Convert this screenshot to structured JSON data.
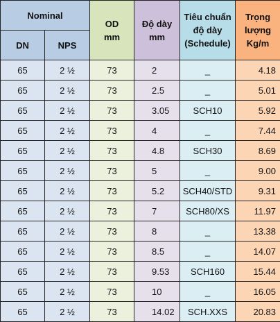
{
  "header": {
    "nominal": "Nominal",
    "dn": "DN",
    "nps": "NPS",
    "od_line1": "OD",
    "od_line2": "mm",
    "thick_line1": "Độ dày",
    "thick_line2": "mm",
    "sched_line1": "Tiêu chuẩn",
    "sched_line2": "độ dày",
    "sched_line3": "(Schedule)",
    "weight_line1": "Trọng",
    "weight_line2": "lượng",
    "weight_line3": "Kg/m"
  },
  "rows": [
    {
      "dn": "65",
      "nps": "2 ½",
      "od": "73",
      "thickness": "2",
      "schedule": "_",
      "weight": "4.18"
    },
    {
      "dn": "65",
      "nps": "2 ½",
      "od": "73",
      "thickness": "2.5",
      "schedule": "_",
      "weight": "5.01"
    },
    {
      "dn": "65",
      "nps": "2 ½",
      "od": "73",
      "thickness": "3.05",
      "schedule": "SCH10",
      "weight": "5.92"
    },
    {
      "dn": "65",
      "nps": "2 ½",
      "od": "73",
      "thickness": "4",
      "schedule": "_",
      "weight": "7.44"
    },
    {
      "dn": "65",
      "nps": "2 ½",
      "od": "73",
      "thickness": "4.8",
      "schedule": "SCH30",
      "weight": "8.69"
    },
    {
      "dn": "65",
      "nps": "2 ½",
      "od": "73",
      "thickness": "5",
      "schedule": "_",
      "weight": "9.00"
    },
    {
      "dn": "65",
      "nps": "2 ½",
      "od": "73",
      "thickness": "5.2",
      "schedule": "SCH40/STD",
      "weight": "9.31"
    },
    {
      "dn": "65",
      "nps": "2 ½",
      "od": "73",
      "thickness": "7",
      "schedule": "SCH80/XS",
      "weight": "11.97"
    },
    {
      "dn": "65",
      "nps": "2 ½",
      "od": "73",
      "thickness": "8",
      "schedule": "_",
      "weight": "13.38"
    },
    {
      "dn": "65",
      "nps": "2 ½",
      "od": "73",
      "thickness": "8.5",
      "schedule": "_",
      "weight": "14.07"
    },
    {
      "dn": "65",
      "nps": "2 ½",
      "od": "73",
      "thickness": "9.53",
      "schedule": "SCH160",
      "weight": "15.44"
    },
    {
      "dn": "65",
      "nps": "2 ½",
      "od": "73",
      "thickness": "10",
      "schedule": "_",
      "weight": "16.05"
    },
    {
      "dn": "65",
      "nps": "2 ½",
      "od": "73",
      "thickness": "14.02",
      "schedule": "SCH.XXS",
      "weight": "20.83"
    }
  ]
}
